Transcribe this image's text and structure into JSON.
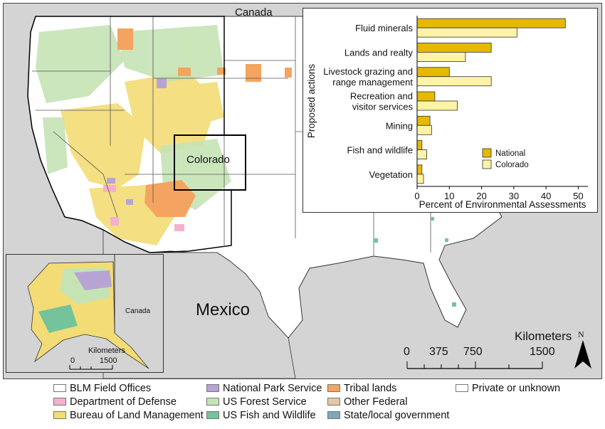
{
  "map": {
    "labels": {
      "canada": "Canada",
      "mexico": "Mexico",
      "colorado": "Colorado"
    },
    "inset": {
      "canada": "Canada",
      "scale_title": "Kilometers",
      "scale_ticks": [
        "0",
        "1500"
      ]
    },
    "scale": {
      "title": "Kilometers",
      "ticks": [
        "0",
        "375",
        "750",
        "1500"
      ]
    },
    "north_arrow": "N",
    "colors": {
      "background": "#d4d4d4",
      "land": "#ffffff",
      "blm": "#f3dc75",
      "forest": "#c6e3b5",
      "tribal": "#f4a460",
      "park": "#b7a4d4",
      "defense": "#f3b0cf",
      "fws": "#74c39a",
      "state": "#7fa7b5"
    }
  },
  "legend": {
    "items": [
      {
        "key": "blm_field_offices",
        "label": "BLM Field Offices",
        "color": "#ffffff"
      },
      {
        "key": "department_of_defense",
        "label": "Department of Defense",
        "color": "#f3b0cf"
      },
      {
        "key": "bureau_of_land_management",
        "label": "Bureau of Land Management",
        "color": "#f3dc75"
      },
      {
        "key": "national_park_service",
        "label": "National Park Service",
        "color": "#b7a4d4"
      },
      {
        "key": "us_forest_service",
        "label": "US Forest Service",
        "color": "#c6e3b5"
      },
      {
        "key": "us_fish_and_wildlife",
        "label": "US Fish and Wildlife",
        "color": "#74c39a"
      },
      {
        "key": "tribal_lands",
        "label": "Tribal lands",
        "color": "#f4a460"
      },
      {
        "key": "other_federal",
        "label": "Other Federal",
        "color": "#e2c8a4"
      },
      {
        "key": "state_local_government",
        "label": "State/local government",
        "color": "#7fa7b5"
      },
      {
        "key": "private_or_unknown",
        "label": "Private or unknown",
        "color": "#ffffff"
      }
    ]
  },
  "chart_data": {
    "type": "bar",
    "orientation": "horizontal",
    "categories": [
      "Fluid minerals",
      "Lands and realty",
      "Livestock grazing and range management",
      "Recreation and visitor services",
      "Mining",
      "Fish and wildlife",
      "Vegetation"
    ],
    "category_lines": [
      [
        "Fluid minerals"
      ],
      [
        "Lands and realty"
      ],
      [
        "Livestock grazing and",
        "range management"
      ],
      [
        "Recreation and",
        "visitor services"
      ],
      [
        "Mining"
      ],
      [
        "Fish and wildlife"
      ],
      [
        "Vegetation"
      ]
    ],
    "series": [
      {
        "name": "National",
        "color": "#e6b800",
        "values": [
          46,
          23,
          10,
          5.5,
          4,
          1.5,
          1.5
        ]
      },
      {
        "name": "Colorado",
        "color": "#fff3a6",
        "values": [
          31,
          15,
          23,
          12.5,
          4.5,
          3,
          2
        ]
      }
    ],
    "xlabel": "Percent of Environmental Assessments",
    "ylabel": "Proposed actions",
    "xlim": [
      0,
      53
    ],
    "xticks": [
      0,
      10,
      20,
      30,
      40,
      50
    ],
    "grid": false,
    "legend_position": "lower-right"
  }
}
